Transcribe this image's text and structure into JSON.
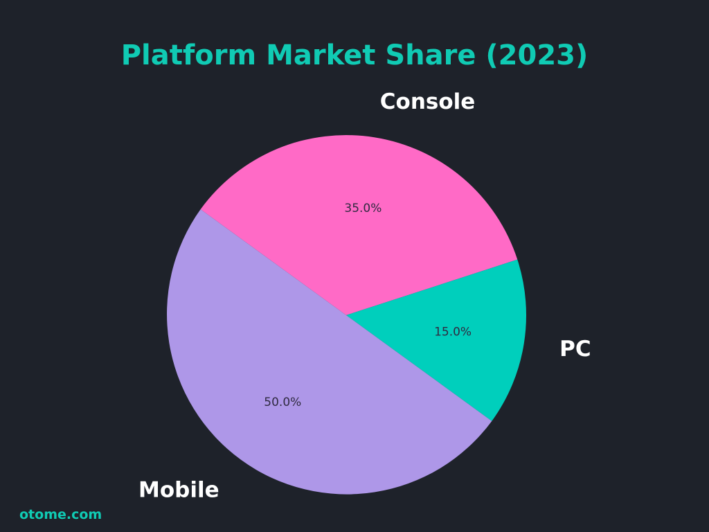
{
  "chart_data": {
    "type": "pie",
    "title": "Platform Market Share (2023)",
    "categories": [
      "Console",
      "PC",
      "Mobile"
    ],
    "values": [
      35.0,
      15.0,
      50.0
    ],
    "value_labels": [
      "35.0%",
      "15.0%",
      "50.0%"
    ],
    "colors": [
      "#ff6ac6",
      "#00cfbc",
      "#ae97e8"
    ],
    "start_angle_deg": 144,
    "direction": "clockwise",
    "legend": "none"
  },
  "footer": {
    "watermark": "otome.com"
  }
}
